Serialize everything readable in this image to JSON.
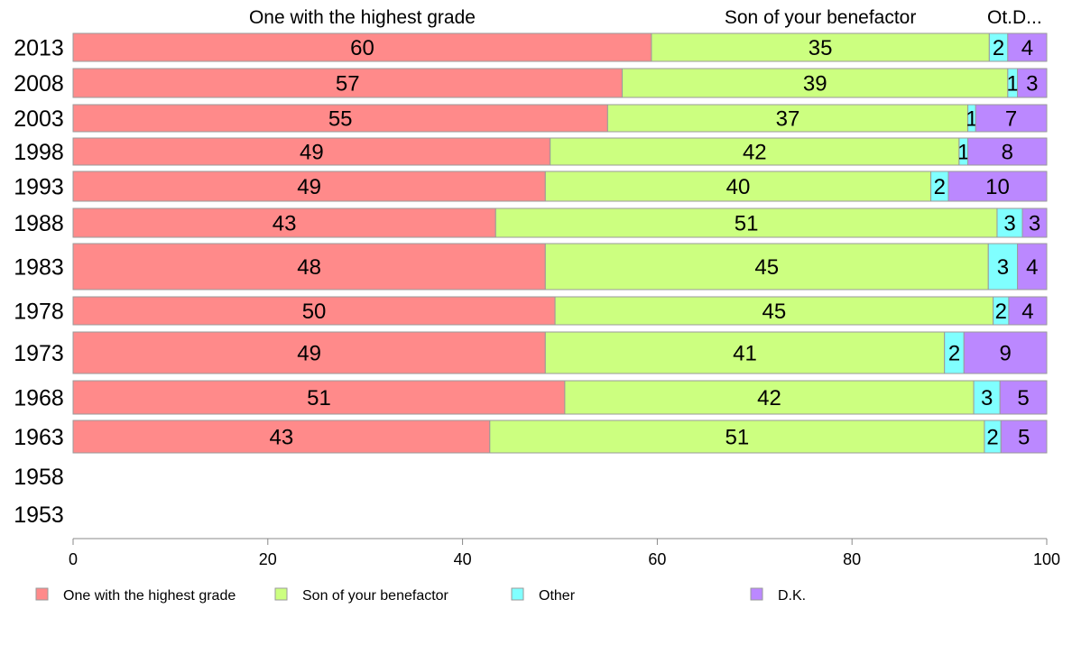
{
  "chart_data": {
    "type": "bar",
    "orientation": "horizontal",
    "stacked": true,
    "categories": [
      "2013",
      "2008",
      "2003",
      "1998",
      "1993",
      "1988",
      "1983",
      "1978",
      "1973",
      "1968",
      "1963",
      "1958",
      "1953"
    ],
    "series": [
      {
        "name": "One with the highest grade",
        "color": "#ff8a8a",
        "values": [
          60,
          57,
          55,
          49,
          49,
          43,
          48,
          50,
          49,
          51,
          43,
          null,
          null
        ],
        "shares": [
          59.4,
          56.4,
          54.9,
          49.0,
          48.5,
          43.4,
          48.5,
          49.5,
          48.5,
          50.5,
          42.8,
          null,
          null
        ]
      },
      {
        "name": "Son of your benefactor",
        "color": "#ccff80",
        "values": [
          35,
          39,
          37,
          42,
          40,
          51,
          45,
          45,
          41,
          42,
          51,
          null,
          null
        ],
        "shares": [
          34.7,
          39.6,
          37.0,
          42.0,
          39.6,
          51.5,
          45.5,
          45.0,
          41.0,
          42.0,
          50.8,
          null,
          null
        ]
      },
      {
        "name": "Other",
        "color": "#80ffff",
        "values": [
          2,
          1,
          1,
          1,
          2,
          3,
          3,
          2,
          2,
          3,
          2,
          null,
          null
        ],
        "shares": [
          1.9,
          1.0,
          0.8,
          0.9,
          1.8,
          2.6,
          3.0,
          1.6,
          2.0,
          2.7,
          1.7,
          null,
          null
        ]
      },
      {
        "name": "D.K.",
        "color": "#bb88ff",
        "values": [
          4,
          3,
          7,
          8,
          10,
          3,
          4,
          4,
          9,
          5,
          5,
          null,
          null
        ],
        "shares": [
          4.0,
          3.0,
          7.3,
          8.1,
          10.1,
          2.5,
          3.0,
          3.9,
          8.5,
          4.8,
          4.7,
          null,
          null
        ]
      }
    ],
    "top_labels": [
      "One with the highest grade",
      "Son of your benefactor",
      "Ot.",
      "D..."
    ],
    "xlim": [
      0,
      100
    ],
    "xticks": [
      0,
      20,
      40,
      60,
      80,
      100
    ],
    "legend_position": "bottom",
    "grid": false
  }
}
